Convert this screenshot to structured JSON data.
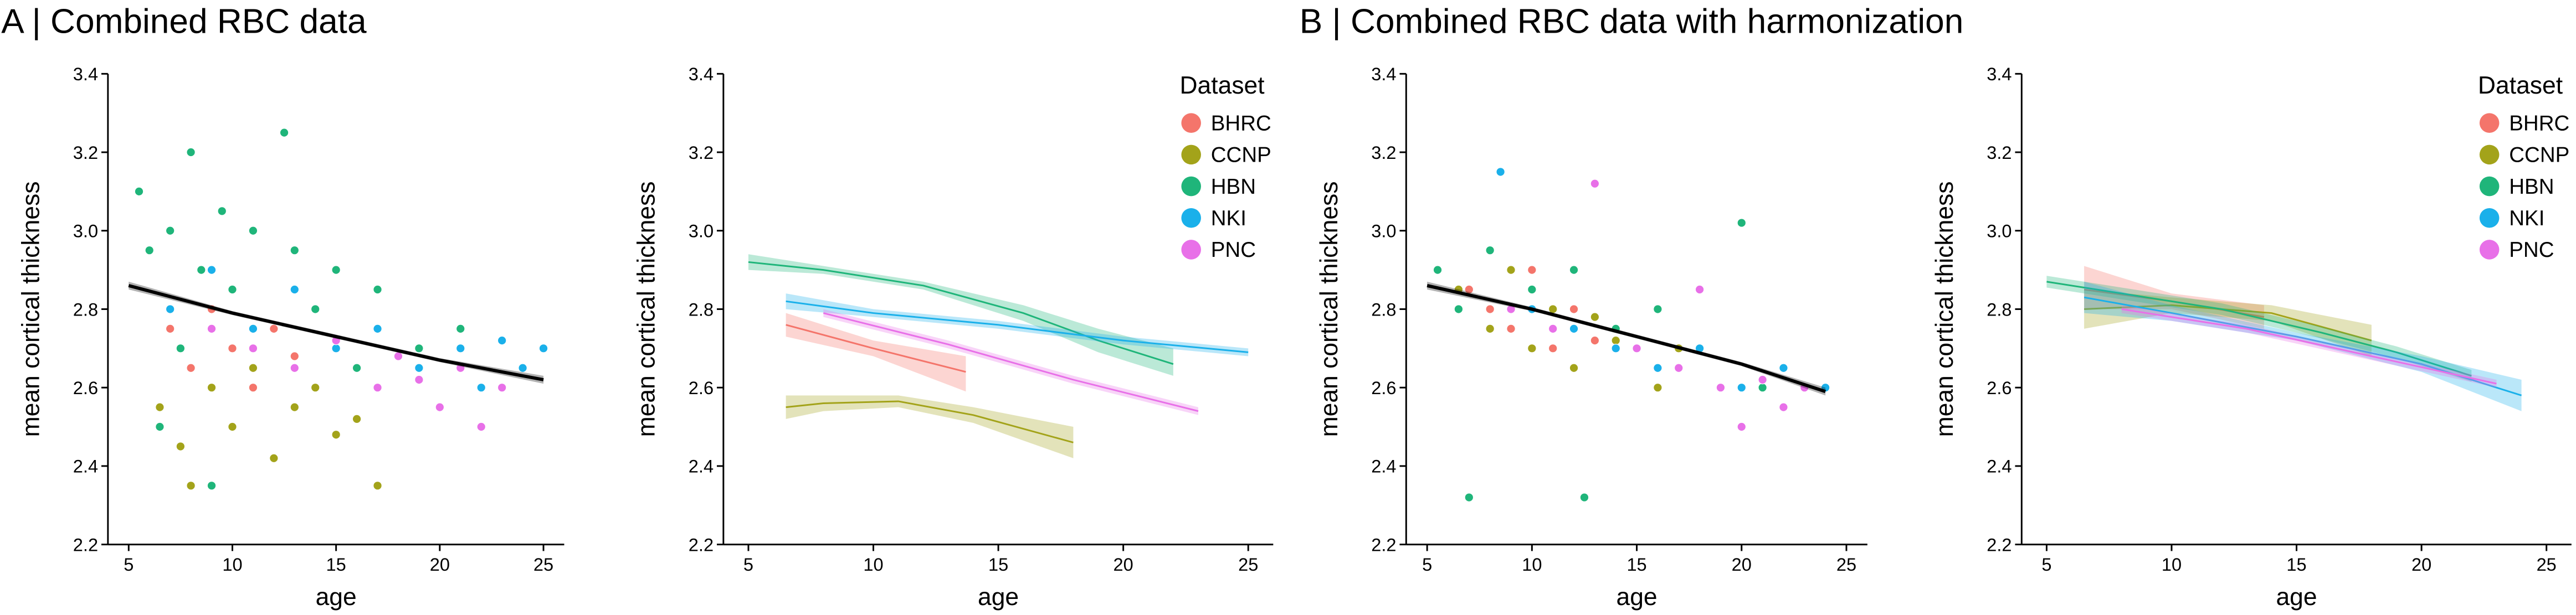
{
  "chart_data": [
    {
      "type": "scatter",
      "title": "A | Combined RBC data",
      "xlabel": "age",
      "ylabel": "mean cortical thickness",
      "xlim": [
        4,
        26
      ],
      "ylim": [
        2.2,
        3.4
      ],
      "xticks": [
        5,
        10,
        15,
        20,
        25
      ],
      "yticks": [
        2.2,
        2.4,
        2.6,
        2.8,
        {
          "value": 3,
          "label": "3.0"
        },
        3.2,
        3.4
      ],
      "series": [
        {
          "color": "#1fb57a",
          "x": [
            5.5,
            6,
            6.5,
            7,
            7.5,
            8,
            8.5,
            9,
            9.5,
            10,
            11,
            12,
            12.5,
            13,
            14,
            15,
            16,
            17,
            19,
            21
          ],
          "values": [
            3.1,
            2.95,
            2.5,
            3.0,
            2.7,
            3.2,
            2.9,
            2.35,
            3.05,
            2.85,
            3.0,
            2.75,
            3.25,
            2.95,
            2.8,
            2.9,
            2.65,
            2.85,
            2.7,
            2.75
          ]
        },
        {
          "color": "#a3a31a",
          "x": [
            6.5,
            7.5,
            8,
            9,
            10,
            11,
            12,
            13,
            14,
            15,
            16,
            17
          ],
          "values": [
            2.55,
            2.45,
            2.35,
            2.6,
            2.5,
            2.65,
            2.42,
            2.55,
            2.6,
            2.48,
            2.52,
            2.35
          ]
        },
        {
          "color": "#1ab0ea",
          "x": [
            7,
            9,
            11,
            13,
            15,
            17,
            19,
            21,
            22,
            23,
            24,
            25
          ],
          "values": [
            2.8,
            2.9,
            2.75,
            2.85,
            2.7,
            2.75,
            2.65,
            2.7,
            2.6,
            2.72,
            2.65,
            2.7
          ]
        },
        {
          "color": "#e870e8",
          "x": [
            9,
            11,
            13,
            15,
            17,
            18,
            19,
            20,
            21,
            22,
            23
          ],
          "values": [
            2.75,
            2.7,
            2.65,
            2.72,
            2.6,
            2.68,
            2.62,
            2.55,
            2.65,
            2.5,
            2.6
          ]
        },
        {
          "color": "#f4756b",
          "x": [
            7,
            8,
            9,
            10,
            11,
            12,
            13
          ],
          "values": [
            2.75,
            2.65,
            2.8,
            2.7,
            2.6,
            2.75,
            2.68
          ]
        }
      ],
      "fit": {
        "color": "#000000",
        "x": [
          5,
          10,
          15,
          20,
          25
        ],
        "values": [
          2.86,
          2.79,
          2.73,
          2.67,
          2.62
        ],
        "lower": [
          2.85,
          2.785,
          2.725,
          2.665,
          2.61
        ],
        "upper": [
          2.87,
          2.795,
          2.735,
          2.675,
          2.63
        ]
      }
    },
    {
      "type": "line",
      "xlabel": "age",
      "ylabel": "mean cortical thickness",
      "legend_title": "Dataset",
      "legend": "upper right",
      "xlim": [
        4,
        26
      ],
      "ylim": [
        2.2,
        3.4
      ],
      "xticks": [
        5,
        10,
        15,
        20,
        25
      ],
      "yticks": [
        2.2,
        2.4,
        2.6,
        2.8,
        {
          "value": 3,
          "label": "3.0"
        },
        3.2,
        3.4
      ],
      "series": [
        {
          "name": "BHRC",
          "color": "#f4756b",
          "x": [
            6.5,
            10,
            13.7
          ],
          "values": [
            2.76,
            2.7,
            2.64
          ],
          "lower": [
            2.73,
            2.68,
            2.59
          ],
          "upper": [
            2.79,
            2.72,
            2.68
          ]
        },
        {
          "name": "CCNP",
          "color": "#a3a31a",
          "x": [
            6.5,
            8,
            11,
            14,
            18
          ],
          "values": [
            2.55,
            2.56,
            2.565,
            2.53,
            2.46
          ],
          "lower": [
            2.52,
            2.54,
            2.55,
            2.51,
            2.42
          ],
          "upper": [
            2.58,
            2.58,
            2.58,
            2.55,
            2.5
          ]
        },
        {
          "name": "HBN",
          "color": "#1fb57a",
          "x": [
            5,
            8,
            12,
            16,
            19,
            22
          ],
          "values": [
            2.92,
            2.9,
            2.86,
            2.79,
            2.72,
            2.66
          ],
          "lower": [
            2.9,
            2.89,
            2.85,
            2.77,
            2.69,
            2.63
          ],
          "upper": [
            2.94,
            2.91,
            2.87,
            2.81,
            2.75,
            2.7
          ]
        },
        {
          "name": "NKI",
          "color": "#1ab0ea",
          "x": [
            6.5,
            10,
            15,
            20,
            25
          ],
          "values": [
            2.82,
            2.79,
            2.76,
            2.72,
            2.69
          ],
          "lower": [
            2.8,
            2.78,
            2.75,
            2.71,
            2.68
          ],
          "upper": [
            2.84,
            2.8,
            2.77,
            2.73,
            2.7
          ]
        },
        {
          "name": "PNC",
          "color": "#e870e8",
          "x": [
            8,
            13,
            18,
            23
          ],
          "values": [
            2.79,
            2.71,
            2.62,
            2.54
          ],
          "lower": [
            2.78,
            2.7,
            2.61,
            2.53
          ],
          "upper": [
            2.8,
            2.72,
            2.63,
            2.55
          ]
        }
      ]
    },
    {
      "type": "scatter",
      "title": "B | Combined RBC data with harmonization",
      "xlabel": "age",
      "ylabel": "mean cortical thickness",
      "xlim": [
        4,
        26
      ],
      "ylim": [
        2.2,
        3.4
      ],
      "xticks": [
        5,
        10,
        15,
        20,
        25
      ],
      "yticks": [
        2.2,
        2.4,
        2.6,
        2.8,
        {
          "value": 3,
          "label": "3.0"
        },
        3.2,
        3.4
      ],
      "series": [
        {
          "color": "#1fb57a",
          "x": [
            5.5,
            6.5,
            7,
            8,
            9,
            10,
            11,
            12,
            12.5,
            14,
            16,
            18,
            20,
            21
          ],
          "values": [
            2.9,
            2.8,
            2.32,
            2.95,
            2.75,
            2.85,
            2.7,
            2.9,
            2.32,
            2.75,
            2.8,
            2.7,
            3.02,
            2.6
          ]
        },
        {
          "color": "#a3a31a",
          "x": [
            6.5,
            8,
            9,
            10,
            11,
            12,
            13,
            14,
            16,
            17
          ],
          "values": [
            2.85,
            2.75,
            2.9,
            2.7,
            2.8,
            2.65,
            2.78,
            2.72,
            2.6,
            2.7
          ]
        },
        {
          "color": "#1ab0ea",
          "x": [
            7,
            8.5,
            10,
            12,
            14,
            16,
            18,
            20,
            22,
            24
          ],
          "values": [
            2.85,
            3.15,
            2.8,
            2.75,
            2.7,
            2.65,
            2.7,
            2.6,
            2.65,
            2.6
          ]
        },
        {
          "color": "#e870e8",
          "x": [
            9,
            11,
            13,
            15,
            17,
            18,
            19,
            20,
            21,
            22,
            23
          ],
          "values": [
            2.8,
            2.75,
            3.12,
            2.7,
            2.65,
            2.85,
            2.6,
            2.5,
            2.62,
            2.55,
            2.6
          ]
        },
        {
          "color": "#f4756b",
          "x": [
            7,
            8,
            9,
            10,
            11,
            12,
            13
          ],
          "values": [
            2.85,
            2.8,
            2.75,
            2.9,
            2.7,
            2.8,
            2.72
          ]
        }
      ],
      "fit": {
        "color": "#000000",
        "x": [
          5,
          10,
          15,
          20,
          24
        ],
        "values": [
          2.86,
          2.8,
          2.73,
          2.66,
          2.59
        ],
        "lower": [
          2.85,
          2.795,
          2.725,
          2.655,
          2.58
        ],
        "upper": [
          2.87,
          2.805,
          2.735,
          2.665,
          2.6
        ]
      }
    },
    {
      "type": "line",
      "xlabel": "age",
      "ylabel": "mean cortical thickness",
      "legend_title": "Dataset",
      "legend": "upper right",
      "xlim": [
        4,
        26
      ],
      "ylim": [
        2.2,
        3.4
      ],
      "xticks": [
        5,
        10,
        15,
        20,
        25
      ],
      "yticks": [
        2.2,
        2.4,
        2.6,
        2.8,
        {
          "value": 3,
          "label": "3.0"
        },
        3.2,
        3.4
      ],
      "series": [
        {
          "name": "BHRC",
          "color": "#f4756b",
          "x": [
            6.5,
            10,
            13.7
          ],
          "values": [
            2.85,
            2.82,
            2.78
          ],
          "lower": [
            2.8,
            2.8,
            2.75
          ],
          "upper": [
            2.91,
            2.84,
            2.81
          ]
        },
        {
          "name": "CCNP",
          "color": "#a3a31a",
          "x": [
            6.5,
            10,
            14,
            18
          ],
          "values": [
            2.8,
            2.81,
            2.79,
            2.72
          ],
          "lower": [
            2.75,
            2.79,
            2.77,
            2.68
          ],
          "upper": [
            2.85,
            2.83,
            2.81,
            2.76
          ]
        },
        {
          "name": "HBN",
          "color": "#1fb57a",
          "x": [
            5,
            8,
            12,
            16,
            19,
            22
          ],
          "values": [
            2.87,
            2.84,
            2.8,
            2.74,
            2.69,
            2.63
          ],
          "lower": [
            2.855,
            2.825,
            2.785,
            2.725,
            2.675,
            2.615
          ],
          "upper": [
            2.885,
            2.855,
            2.815,
            2.755,
            2.705,
            2.645
          ]
        },
        {
          "name": "NKI",
          "color": "#1ab0ea",
          "x": [
            6.5,
            10,
            15,
            20,
            24
          ],
          "values": [
            2.83,
            2.79,
            2.73,
            2.66,
            2.58
          ],
          "lower": [
            2.79,
            2.77,
            2.72,
            2.64,
            2.54
          ],
          "upper": [
            2.87,
            2.81,
            2.74,
            2.68,
            2.62
          ]
        },
        {
          "name": "PNC",
          "color": "#e870e8",
          "x": [
            8,
            13,
            18,
            23
          ],
          "values": [
            2.8,
            2.75,
            2.68,
            2.61
          ],
          "lower": [
            2.79,
            2.74,
            2.67,
            2.6
          ],
          "upper": [
            2.81,
            2.76,
            2.69,
            2.62
          ]
        }
      ]
    }
  ]
}
